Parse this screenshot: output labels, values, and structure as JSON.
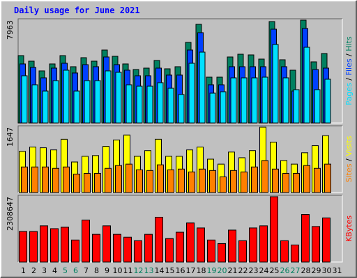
{
  "title": "Daily usage for June 2021",
  "legend_separator": " / ",
  "chart_data": [
    {
      "type": "bar",
      "ylim": [
        0,
        7963
      ],
      "yticks": [
        7963
      ],
      "series": [
        {
          "name": "Hits",
          "color": "#008060",
          "values": [
            5219,
            4789,
            4036,
            4574,
            5219,
            4359,
            5058,
            4789,
            5650,
            5165,
            4574,
            4143,
            4251,
            4843,
            4197,
            4359,
            6242,
            7641,
            3551,
            3551,
            5112,
            5327,
            5273,
            4950,
            7856,
            4897,
            4090,
            7963,
            4735,
            5381,
            0
          ]
        },
        {
          "name": "Files",
          "color": "#0040ff",
          "values": [
            4574,
            4304,
            3497,
            4251,
            4627,
            3874,
            4520,
            4359,
            5112,
            4520,
            4090,
            3659,
            3659,
            4251,
            3712,
            3712,
            5650,
            6995,
            2959,
            2959,
            4359,
            4359,
            4359,
            4359,
            7264,
            4359,
            2475,
            7318,
            4143,
            4251,
            0
          ]
        },
        {
          "name": "Pages",
          "color": "#00e0ff",
          "values": [
            3659,
            2959,
            2475,
            3282,
            4090,
            2475,
            3282,
            3282,
            4036,
            3928,
            2959,
            2851,
            2851,
            3121,
            2690,
            2206,
            4627,
            5488,
            2313,
            2421,
            3497,
            3497,
            3497,
            3551,
            6080,
            3497,
            2582,
            5864,
            2582,
            3390,
            0
          ]
        }
      ]
    },
    {
      "type": "bar",
      "ylim": [
        0,
        1647
      ],
      "yticks": [
        1647
      ],
      "series": [
        {
          "name": "Visits",
          "color": "#ffff00",
          "values": [
            1038,
            1146,
            1128,
            1074,
            1343,
            770,
            913,
            931,
            1164,
            1325,
            1450,
            913,
            1056,
            1343,
            913,
            913,
            1074,
            1146,
            841,
            716,
            1020,
            877,
            1056,
            1647,
            1271,
            806,
            716,
            1002,
            1181,
            1432,
            0
          ]
        },
        {
          "name": "Sites",
          "color": "#ff8000",
          "values": [
            644,
            644,
            644,
            609,
            644,
            465,
            483,
            483,
            609,
            680,
            716,
            573,
            555,
            698,
            573,
            591,
            519,
            591,
            555,
            394,
            555,
            519,
            644,
            806,
            591,
            483,
            483,
            680,
            609,
            716,
            0
          ]
        }
      ]
    },
    {
      "type": "bar",
      "ylim": [
        0,
        2308647
      ],
      "yticks": [
        2308647
      ],
      "categories": [
        "1",
        "2",
        "3",
        "4",
        "5",
        "6",
        "7",
        "8",
        "9",
        "10",
        "11",
        "12",
        "13",
        "14",
        "15",
        "16",
        "17",
        "18",
        "19",
        "20",
        "21",
        "22",
        "23",
        "24",
        "25",
        "26",
        "27",
        "28",
        "29",
        "30",
        "31"
      ],
      "category_colors": [
        "#000000",
        "#000000",
        "#000000",
        "#000000",
        "#008060",
        "#008060",
        "#000000",
        "#000000",
        "#000000",
        "#000000",
        "#000000",
        "#008060",
        "#008060",
        "#000000",
        "#000000",
        "#000000",
        "#000000",
        "#000000",
        "#008060",
        "#008060",
        "#000000",
        "#000000",
        "#000000",
        "#000000",
        "#000000",
        "#008060",
        "#008060",
        "#000000",
        "#000000",
        "#000000",
        "#000000"
      ],
      "series": [
        {
          "name": "KBytes",
          "color": "#ff0000",
          "values": [
            1079042,
            1079042,
            1279794,
            1179418,
            1229606,
            777914,
            1480546,
            978666,
            1279794,
            978666,
            878290,
            752820,
            978666,
            1580922,
            828102,
            1053948,
            1380170,
            1204512,
            777914,
            652444,
            1129230,
            752820,
            1204512,
            1279794,
            2308647,
            752820,
            602256,
            1681298,
            1254700,
            1555828,
            0
          ]
        }
      ]
    }
  ]
}
